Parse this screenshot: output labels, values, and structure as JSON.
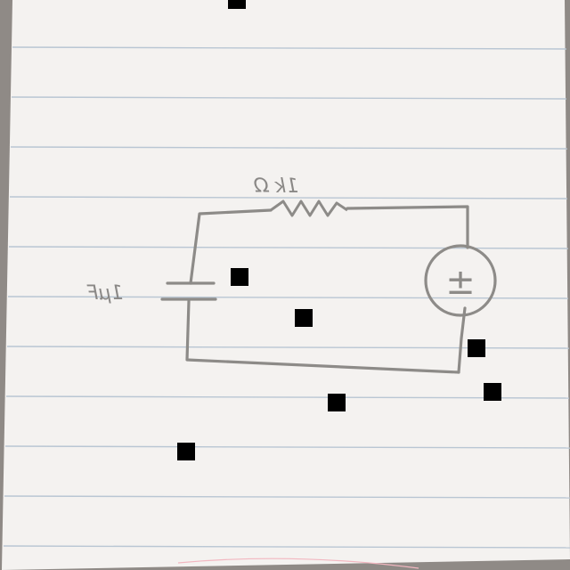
{
  "diagram": {
    "components": {
      "resistor_label": "1k Ω",
      "capacitor_label": "1μF",
      "source_symbol": "±"
    }
  },
  "colors": {
    "paper": "#f3f1ef",
    "ruled_line": "#b9c6d3",
    "margin_line": "#f2b7c0",
    "ink": "#8d8b88",
    "marker": "#000000"
  }
}
